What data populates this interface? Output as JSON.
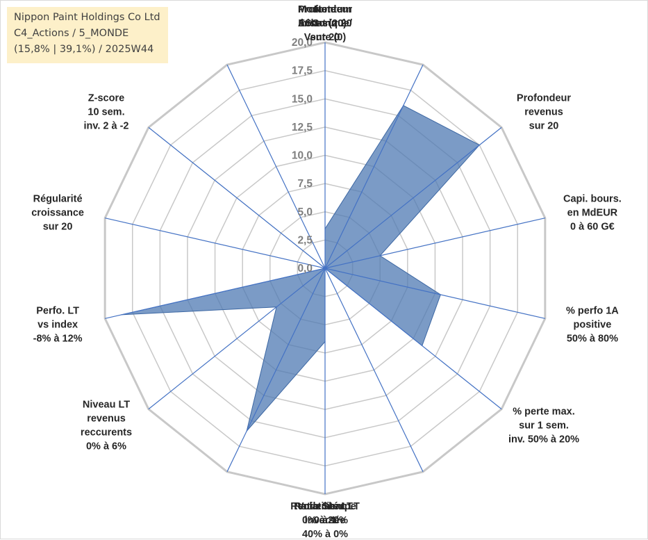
{
  "title_box": {
    "line1": "Nippon Paint Holdings Co Ltd",
    "line2": "C4_Actions / 5_MONDE",
    "line3": "(15,8% | 39,1%) / 2025W44"
  },
  "colors": {
    "fill": "#4f7ab3",
    "fill_opacity": 0.75,
    "spoke": "#4472c4",
    "grid": "#c8c8c8",
    "title_bg": "#fdf0c9"
  },
  "chart_data": {
    "type": "radar",
    "rmin": 0,
    "rmax": 20,
    "tick_step": 2.5,
    "tick_labels": [
      "0,0",
      "2,5",
      "5,0",
      "7,5",
      "10,0",
      "12,5",
      "15,0",
      "17,5",
      "20,0"
    ],
    "categories": [
      [
        "Note",
        "ESG sur 20"
      ],
      [
        "Profondeur",
        "historique",
        "sur 20"
      ],
      [
        "Profondeur",
        "revenus",
        "sur 20"
      ],
      [
        "Capi. bours.",
        "en MdEUR",
        "0 à 60 G€"
      ],
      [
        "% perfo 1A",
        "positive",
        "50% à 80%"
      ],
      [
        "% perte max.",
        "sur 1 sem.",
        "inv. 50% à 20%"
      ],
      [
        "Volatilité LT",
        "inversée",
        "40% à 0%"
      ],
      [
        "Ratio Sharpe",
        "0 à 1"
      ],
      [
        "Rendement LT",
        "0% à 20%"
      ],
      [
        "Niveau LT",
        "revenus",
        "reccurents",
        "0% à 6%"
      ],
      [
        "Perfo. LT",
        "vs index",
        "-8% à 12%"
      ],
      [
        "Régularité",
        "croissance",
        "sur 20"
      ],
      [
        "Z-score",
        "10 sem.",
        "inv. 2 à -2"
      ],
      [
        "Momentum",
        "Achat (20) /",
        "Vente (0)"
      ]
    ],
    "values": [
      3.5,
      16.0,
      17.5,
      5.0,
      10.5,
      11.0,
      0.0,
      6.5,
      16.0,
      5.5,
      18.5,
      0.0,
      19.0,
      0.0
    ]
  }
}
